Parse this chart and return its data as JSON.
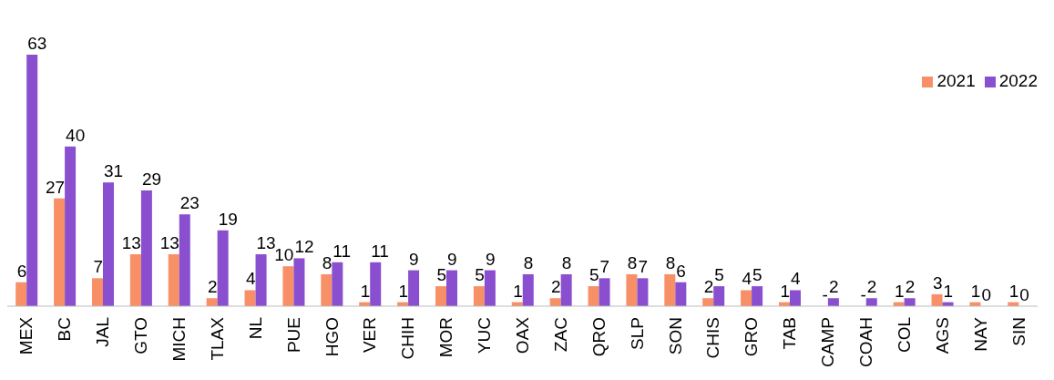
{
  "chart_data": {
    "type": "bar",
    "categories": [
      "MEX",
      "BC",
      "JAL",
      "GTO",
      "MICH",
      "TLAX",
      "NL",
      "PUE",
      "HGO",
      "VER",
      "CHIH",
      "MOR",
      "YUC",
      "OAX",
      "ZAC",
      "QRO",
      "SLP",
      "SON",
      "CHIS",
      "GRO",
      "TAB",
      "CAMP",
      "COAH",
      "COL",
      "AGS",
      "NAY",
      "SIN"
    ],
    "series": [
      {
        "name": "2021",
        "color": "#f79066",
        "values": [
          6,
          27,
          7,
          13,
          13,
          2,
          4,
          10,
          8,
          1,
          1,
          5,
          5,
          1,
          2,
          5,
          8,
          8,
          2,
          4,
          1,
          0,
          0,
          1,
          3,
          1,
          1
        ],
        "value_labels": [
          "6",
          "27",
          "7",
          "13",
          "13",
          "2",
          "4",
          "10",
          "8",
          "1",
          "1",
          "5",
          "5",
          "1",
          "2",
          "5",
          "8",
          "8",
          "2",
          "4",
          "1",
          "-",
          "-",
          "1",
          "3",
          "1",
          "1"
        ]
      },
      {
        "name": "2022",
        "color": "#8a4fcf",
        "values": [
          63,
          40,
          31,
          29,
          23,
          19,
          13,
          12,
          11,
          11,
          9,
          9,
          9,
          8,
          8,
          7,
          7,
          6,
          5,
          5,
          4,
          2,
          2,
          2,
          1,
          0,
          0
        ],
        "value_labels": [
          "63",
          "40",
          "31",
          "29",
          "23",
          "19",
          "13",
          "12",
          "11",
          "11",
          "9",
          "9",
          "9",
          "8",
          "8",
          "7",
          "7",
          "6",
          "5",
          "5",
          "4",
          "2",
          "2",
          "2",
          "1",
          "0",
          "0"
        ]
      }
    ],
    "legend": "top right",
    "grid": false
  }
}
